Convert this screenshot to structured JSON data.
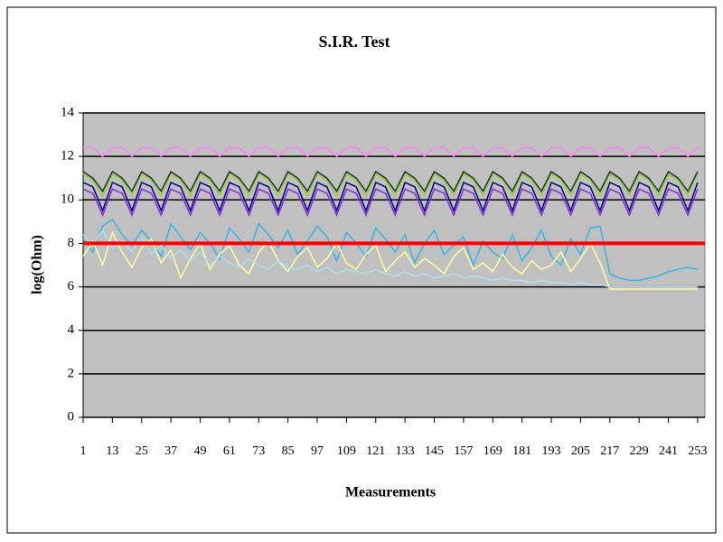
{
  "chart_data": {
    "type": "line",
    "title": "S.I.R. Test",
    "x_label": "Measurements",
    "y_label": "log(Ohm)",
    "xlim": [
      1,
      256
    ],
    "xticks": [
      1,
      13,
      25,
      37,
      49,
      61,
      73,
      85,
      97,
      109,
      121,
      133,
      145,
      157,
      169,
      181,
      193,
      205,
      217,
      229,
      241,
      253
    ],
    "ylim": [
      0,
      14
    ],
    "yticks": [
      0,
      2,
      4,
      6,
      8,
      10,
      12,
      14
    ],
    "grid": true,
    "grid_color": "#000000",
    "background": "#c0c0c0",
    "threshold": {
      "value": 8,
      "color": "#ff0000"
    },
    "x": [
      1,
      5,
      9,
      13,
      17,
      21,
      25,
      29,
      33,
      37,
      41,
      45,
      49,
      53,
      57,
      61,
      65,
      69,
      73,
      77,
      81,
      85,
      89,
      93,
      97,
      101,
      105,
      109,
      113,
      117,
      121,
      125,
      129,
      133,
      137,
      141,
      145,
      149,
      153,
      157,
      161,
      165,
      169,
      173,
      177,
      181,
      185,
      189,
      193,
      197,
      201,
      205,
      209,
      213,
      217,
      221,
      225,
      229,
      233,
      237,
      241,
      245,
      249,
      253
    ],
    "series": [
      {
        "color": "#ff80ff",
        "values": [
          12.4,
          12.4,
          12.0,
          12.4,
          12.4,
          12.0,
          12.4,
          12.4,
          12.0,
          12.4,
          12.4,
          12.0,
          12.4,
          12.4,
          12.0,
          12.4,
          12.4,
          12.0,
          12.4,
          12.4,
          12.0,
          12.4,
          12.4,
          12.0,
          12.4,
          12.4,
          12.0,
          12.4,
          12.4,
          12.0,
          12.4,
          12.4,
          12.0,
          12.4,
          12.4,
          12.0,
          12.4,
          12.4,
          12.0,
          12.4,
          12.4,
          12.0,
          12.4,
          12.4,
          12.0,
          12.4,
          12.4,
          12.0,
          12.4,
          12.4,
          12.0,
          12.4,
          12.4,
          12.0,
          12.4,
          12.4,
          12.0,
          12.4,
          12.4,
          12.0,
          12.4,
          12.4,
          12.0,
          12.4
        ]
      },
      {
        "color": "#9acd32",
        "values": [
          11.2,
          10.9,
          10.2,
          11.2,
          10.9,
          10.2,
          11.2,
          10.9,
          10.2,
          11.2,
          10.9,
          10.2,
          11.2,
          10.9,
          10.2,
          11.2,
          10.9,
          10.2,
          11.2,
          10.9,
          10.2,
          11.2,
          10.9,
          10.2,
          11.2,
          10.9,
          10.2,
          11.2,
          10.9,
          10.2,
          11.2,
          10.9,
          10.2,
          11.2,
          10.9,
          10.2,
          11.2,
          10.9,
          10.2,
          11.2,
          10.9,
          10.2,
          11.2,
          10.9,
          10.2,
          11.2,
          10.9,
          10.2,
          11.2,
          10.9,
          10.2,
          11.2,
          10.9,
          10.2,
          11.2,
          10.9,
          10.2,
          11.2,
          10.9,
          10.2,
          11.2,
          10.9,
          10.2,
          11.2
        ]
      },
      {
        "color": "#1a3a2a",
        "values": [
          11.3,
          11.0,
          10.4,
          11.3,
          11.0,
          10.4,
          11.3,
          11.0,
          10.4,
          11.3,
          11.0,
          10.4,
          11.3,
          11.0,
          10.4,
          11.3,
          11.0,
          10.4,
          11.3,
          11.0,
          10.4,
          11.3,
          11.0,
          10.4,
          11.3,
          11.0,
          10.4,
          11.3,
          11.0,
          10.4,
          11.3,
          11.0,
          10.4,
          11.3,
          11.0,
          10.4,
          11.3,
          11.0,
          10.4,
          11.3,
          11.0,
          10.4,
          11.3,
          11.0,
          10.4,
          11.3,
          11.0,
          10.4,
          11.3,
          11.0,
          10.4,
          11.3,
          11.0,
          10.4,
          11.3,
          11.0,
          10.4,
          11.3,
          11.0,
          10.4,
          11.3,
          11.0,
          10.4,
          11.3
        ]
      },
      {
        "color": "#000080",
        "values": [
          10.8,
          10.6,
          9.5,
          10.8,
          10.6,
          9.5,
          10.8,
          10.6,
          9.5,
          10.8,
          10.6,
          9.5,
          10.8,
          10.6,
          9.5,
          10.8,
          10.6,
          9.5,
          10.8,
          10.6,
          9.5,
          10.8,
          10.6,
          9.5,
          10.8,
          10.6,
          9.5,
          10.8,
          10.6,
          9.5,
          10.8,
          10.6,
          9.5,
          10.8,
          10.6,
          9.5,
          10.8,
          10.6,
          9.5,
          10.8,
          10.6,
          9.5,
          10.8,
          10.6,
          9.5,
          10.8,
          10.6,
          9.5,
          10.8,
          10.6,
          9.5,
          10.8,
          10.6,
          9.5,
          10.8,
          10.6,
          9.5,
          10.8,
          10.6,
          9.5,
          10.8,
          10.6,
          9.5,
          10.8
        ]
      },
      {
        "color": "#8a2be2",
        "values": [
          10.5,
          10.3,
          9.3,
          10.5,
          10.3,
          9.3,
          10.5,
          10.3,
          9.3,
          10.5,
          10.3,
          9.3,
          10.5,
          10.3,
          9.3,
          10.5,
          10.3,
          9.3,
          10.5,
          10.3,
          9.3,
          10.5,
          10.3,
          9.3,
          10.5,
          10.3,
          9.3,
          10.5,
          10.3,
          9.3,
          10.5,
          10.3,
          9.3,
          10.5,
          10.3,
          9.3,
          10.5,
          10.3,
          9.3,
          10.5,
          10.3,
          9.3,
          10.5,
          10.3,
          9.3,
          10.5,
          10.3,
          9.3,
          10.5,
          10.3,
          9.3,
          10.5,
          10.3,
          9.3,
          10.5,
          10.3,
          9.3,
          10.5,
          10.3,
          9.3,
          10.5,
          10.3,
          9.3,
          10.5
        ]
      },
      {
        "color": "#33b5e5",
        "values": [
          8.2,
          7.6,
          8.8,
          9.1,
          8.4,
          7.9,
          8.6,
          8.1,
          7.4,
          8.9,
          8.3,
          7.7,
          8.5,
          8.0,
          7.3,
          8.7,
          8.2,
          7.6,
          8.9,
          8.4,
          7.8,
          8.6,
          7.5,
          8.1,
          8.8,
          8.3,
          7.2,
          8.5,
          8.0,
          7.4,
          8.7,
          8.2,
          7.6,
          8.4,
          7.1,
          8.0,
          8.6,
          7.5,
          7.9,
          8.3,
          7.0,
          8.1,
          7.6,
          7.3,
          8.4,
          7.2,
          7.8,
          8.6,
          7.4,
          7.0,
          8.2,
          7.5,
          8.7,
          8.8,
          6.6,
          6.4,
          6.3,
          6.3,
          6.4,
          6.5,
          6.7,
          6.8,
          6.9,
          6.8
        ]
      },
      {
        "color": "#ffffa0",
        "values": [
          7.4,
          8.1,
          7.0,
          8.5,
          7.6,
          6.9,
          7.8,
          8.2,
          7.1,
          7.7,
          6.4,
          7.3,
          8.0,
          6.8,
          7.5,
          7.9,
          7.0,
          6.6,
          7.6,
          8.1,
          7.2,
          6.7,
          7.4,
          7.8,
          6.9,
          7.3,
          8.0,
          7.1,
          6.8,
          7.5,
          7.9,
          6.7,
          7.2,
          7.6,
          6.9,
          7.3,
          7.0,
          6.6,
          7.4,
          7.8,
          6.8,
          7.1,
          6.7,
          7.5,
          6.9,
          6.6,
          7.2,
          6.8,
          7.0,
          7.6,
          6.7,
          7.3,
          8.0,
          7.1,
          5.9,
          5.9,
          5.9,
          5.9,
          5.9,
          5.9,
          5.9,
          5.9,
          5.9,
          5.9
        ]
      },
      {
        "color": "#b0e0f0",
        "values": [
          8.4,
          7.9,
          8.6,
          7.8,
          8.1,
          7.6,
          8.3,
          7.5,
          7.9,
          7.3,
          7.7,
          7.2,
          7.6,
          7.0,
          7.4,
          7.1,
          6.9,
          7.3,
          7.0,
          6.8,
          7.2,
          6.9,
          6.8,
          7.0,
          6.7,
          6.9,
          6.6,
          6.8,
          6.7,
          6.6,
          6.8,
          6.6,
          6.5,
          6.7,
          6.5,
          6.6,
          6.4,
          6.5,
          6.6,
          6.4,
          6.5,
          6.4,
          6.3,
          6.4,
          6.3,
          6.3,
          6.2,
          6.3,
          6.2,
          6.2,
          6.1,
          6.2,
          6.1,
          6.1,
          6.0,
          6.0,
          6.0,
          6.0,
          6.0,
          6.0,
          6.0,
          6.0,
          6.0,
          6.0
        ]
      }
    ]
  }
}
